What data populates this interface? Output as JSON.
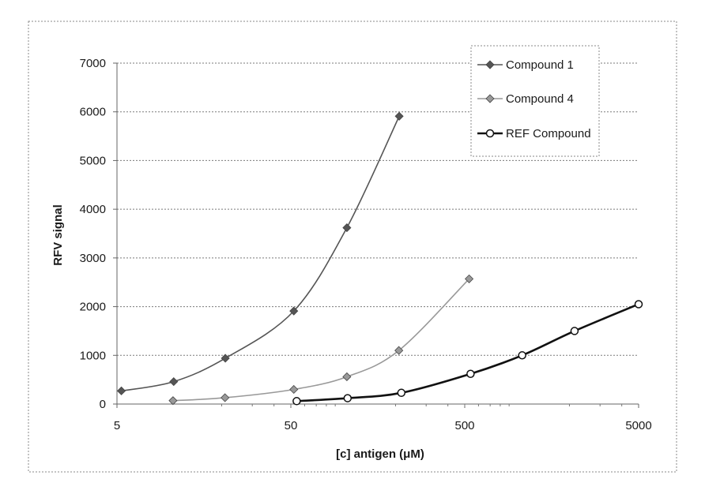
{
  "chart_data": {
    "type": "line",
    "xlabel": "[c] antigen (μM)",
    "ylabel": "RFV signal",
    "x_scale": "log",
    "xlim": [
      5,
      5000
    ],
    "ylim": [
      0,
      7000
    ],
    "x_ticks": [
      5,
      50,
      500,
      5000
    ],
    "x_tick_labels": [
      "5",
      "50",
      "500",
      "5000"
    ],
    "y_ticks": [
      0,
      1000,
      2000,
      3000,
      4000,
      5000,
      6000,
      7000
    ],
    "y_tick_labels": [
      "0",
      "1000",
      "2000",
      "3000",
      "4000",
      "5000",
      "6000",
      "7000"
    ],
    "grid": "horizontal dotted",
    "legend_position": "top-right",
    "series": [
      {
        "name": "Compound 1",
        "color": "#555555",
        "marker": "diamond",
        "x": [
          5.3,
          10.6,
          21,
          52,
          105,
          210
        ],
        "y": [
          270,
          460,
          940,
          1910,
          3620,
          5910
        ]
      },
      {
        "name": "Compound 4",
        "color": "#999999",
        "marker": "diamond",
        "x": [
          10.5,
          20.9,
          52,
          105,
          209,
          530
        ],
        "y": [
          70,
          130,
          300,
          560,
          1100,
          2570
        ]
      },
      {
        "name": "REF Compound",
        "color": "#111111",
        "marker": "circle-open",
        "x": [
          54,
          106,
          216,
          540,
          1070,
          2140,
          5000
        ],
        "y": [
          60,
          120,
          230,
          620,
          1000,
          1500,
          2050
        ]
      }
    ]
  }
}
